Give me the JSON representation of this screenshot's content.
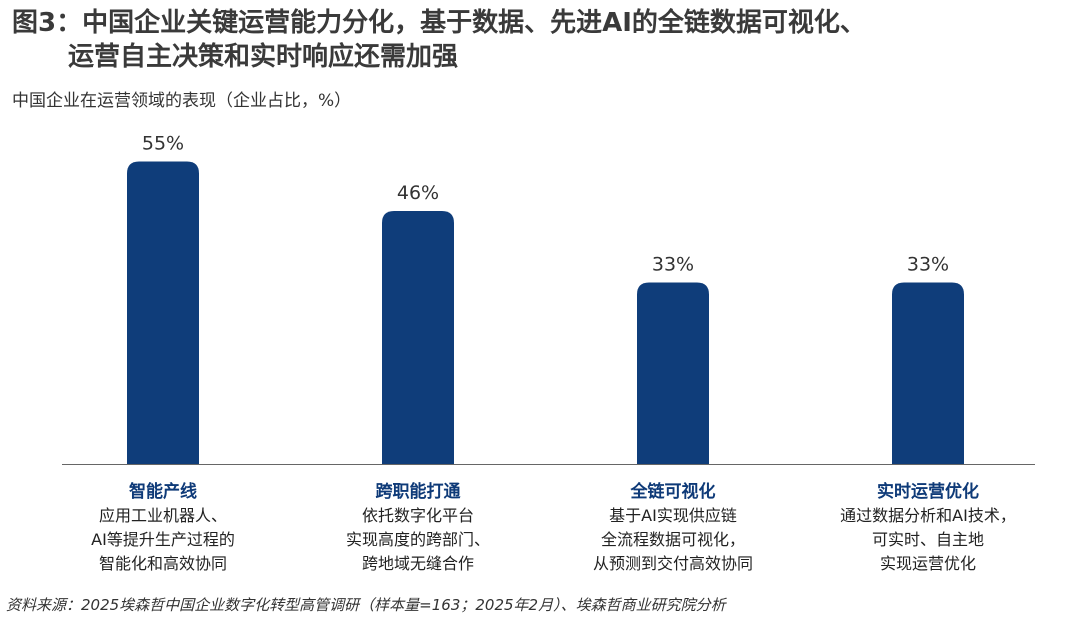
{
  "title": {
    "line1": "图3：中国企业关键运营能力分化，基于数据、先进AI的全链数据可视化、",
    "line2": "运营自主决策和实时响应还需加强"
  },
  "subtitle": "中国企业在运营领域的表现（企业占比，%）",
  "colors": {
    "bar": "#0f3d7a",
    "category_title": "#0e3a78",
    "axis": "#666666"
  },
  "chart_data": {
    "type": "bar",
    "title": "中国企业在运营领域的表现（企业占比，%）",
    "categories": [
      "智能产线",
      "跨职能打通",
      "全链可视化",
      "实时运营优化"
    ],
    "values": [
      55,
      46,
      33,
      33
    ],
    "value_labels": [
      "55%",
      "46%",
      "33%",
      "33%"
    ],
    "ylim": [
      0,
      60
    ],
    "grid": false,
    "legend": "none"
  },
  "categories": [
    {
      "title": "智能产线",
      "desc": [
        "应用工业机器人、",
        "AI等提升生产过程的",
        "智能化和高效协同"
      ]
    },
    {
      "title": "跨职能打通",
      "desc": [
        "依托数字化平台",
        "实现高度的跨部门、",
        "跨地域无缝合作"
      ]
    },
    {
      "title": "全链可视化",
      "desc": [
        "基于AI实现供应链",
        "全流程数据可视化，",
        "从预测到交付高效协同"
      ]
    },
    {
      "title": "实时运营优化",
      "desc": [
        "通过数据分析和AI技术，",
        "可实时、自主地",
        "实现运营优化"
      ]
    }
  ],
  "source": "资料来源：2025埃森哲中国企业数字化转型高管调研（样本量=163；2025年2月）、埃森哲商业研究院分析"
}
